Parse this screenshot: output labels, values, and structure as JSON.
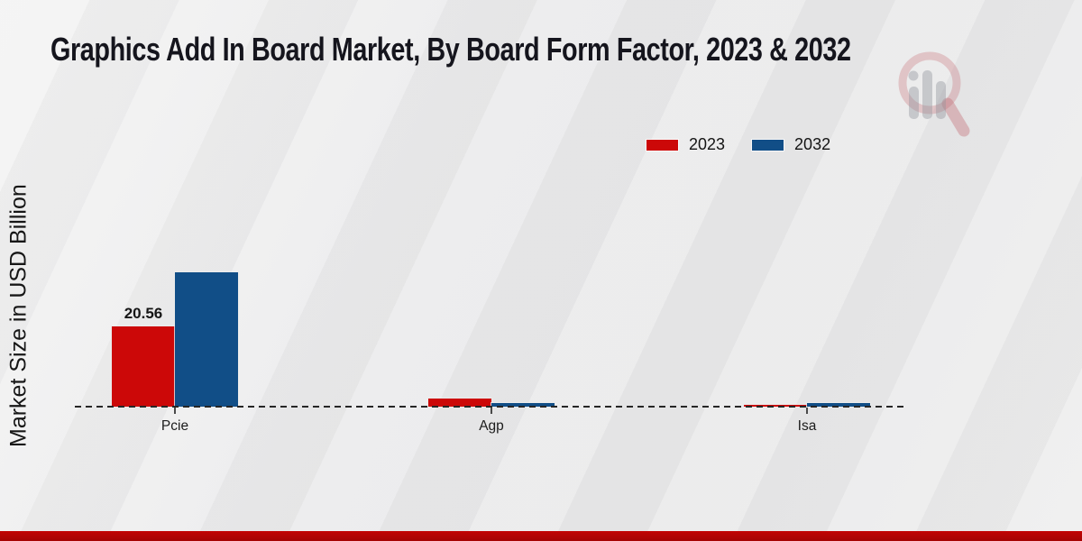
{
  "title": "Graphics Add In Board Market, By Board Form Factor, 2023 & 2032",
  "ylabel": "Market Size in USD Billion",
  "legend": [
    {
      "label": "2023",
      "color": "#cc0808"
    },
    {
      "label": "2032",
      "color": "#114e87"
    }
  ],
  "colors": {
    "series_2023": "#cc0808",
    "series_2032": "#114e87",
    "footer_accent": "#b10505",
    "title_text": "#15151d",
    "baseline": "#262626"
  },
  "watermark_icon": "magnifier-bar-chart-logo",
  "chart_data": {
    "type": "bar",
    "categories": [
      "Pcie",
      "Agp",
      "Isa"
    ],
    "series": [
      {
        "name": "2023",
        "color": "#cc0808",
        "values": [
          20.56,
          2.1,
          0.5
        ],
        "value_labels": [
          "20.56",
          "",
          ""
        ]
      },
      {
        "name": "2032",
        "color": "#114e87",
        "values": [
          34.4,
          1.0,
          0.9
        ],
        "value_labels": [
          "",
          "",
          ""
        ]
      }
    ],
    "title": "Graphics Add In Board Market, By Board Form Factor, 2023 & 2032",
    "xlabel": "",
    "ylabel": "Market Size in USD Billion",
    "ylim": [
      0,
      48
    ],
    "grid": false,
    "baseline_style": "dashed",
    "legend_position": "top-right"
  }
}
